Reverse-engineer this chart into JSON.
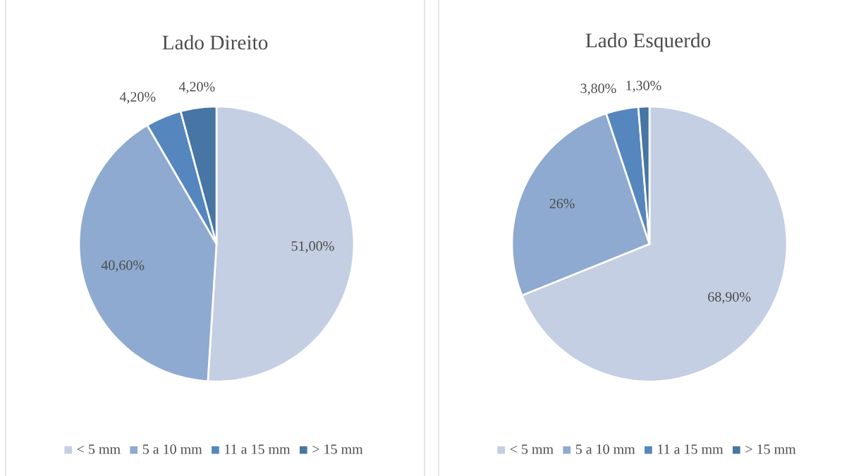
{
  "chart_data": [
    {
      "type": "pie",
      "title": "Lado Direito",
      "categories": [
        "< 5 mm",
        "5 a 10 mm",
        "11 a 15 mm",
        "> 15 mm"
      ],
      "values": [
        51,
        40.6,
        4.2,
        4.2
      ],
      "colors": [
        "#c5cfe3",
        "#8eaad0",
        "#5586be",
        "#4775a4"
      ],
      "value_labels": [
        "51,00%",
        "40,60%",
        "4,20%",
        "4,20%"
      ],
      "legend": "bottom"
    },
    {
      "type": "pie",
      "title": "Lado Esquerdo",
      "categories": [
        "< 5 mm",
        "5 a 10 mm",
        "11 a 15 mm",
        "> 15 mm"
      ],
      "values": [
        68.9,
        26,
        3.8,
        1.3
      ],
      "colors": [
        "#c5cfe3",
        "#8eaad0",
        "#5586be",
        "#4775a4"
      ],
      "value_labels": [
        "68,90%",
        "26%",
        "3,80%",
        "1,30%"
      ],
      "legend": "bottom"
    }
  ]
}
